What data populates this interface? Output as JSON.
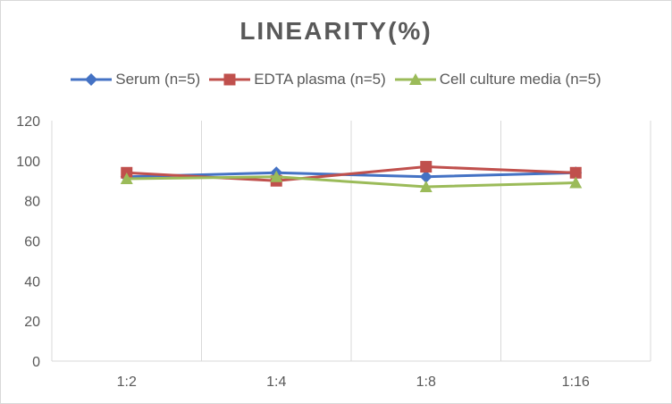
{
  "chart_data": {
    "type": "line",
    "title": "LINEARITY(%)",
    "categories": [
      "1:2",
      "1:4",
      "1:8",
      "1:16"
    ],
    "series": [
      {
        "name": "Serum (n=5)",
        "values": [
          92,
          94,
          92,
          94
        ],
        "color": "#4472c4",
        "marker": "diamond"
      },
      {
        "name": "EDTA plasma (n=5)",
        "values": [
          94,
          90,
          97,
          94
        ],
        "color": "#c0504d",
        "marker": "square"
      },
      {
        "name": "Cell culture media (n=5)",
        "values": [
          91,
          92,
          87,
          89
        ],
        "color": "#9bbb59",
        "marker": "triangle"
      }
    ],
    "ylim": [
      0,
      120
    ],
    "yticks": [
      "0",
      "20",
      "40",
      "60",
      "80",
      "100",
      "120"
    ],
    "grid": "vertical",
    "legend": "top"
  }
}
